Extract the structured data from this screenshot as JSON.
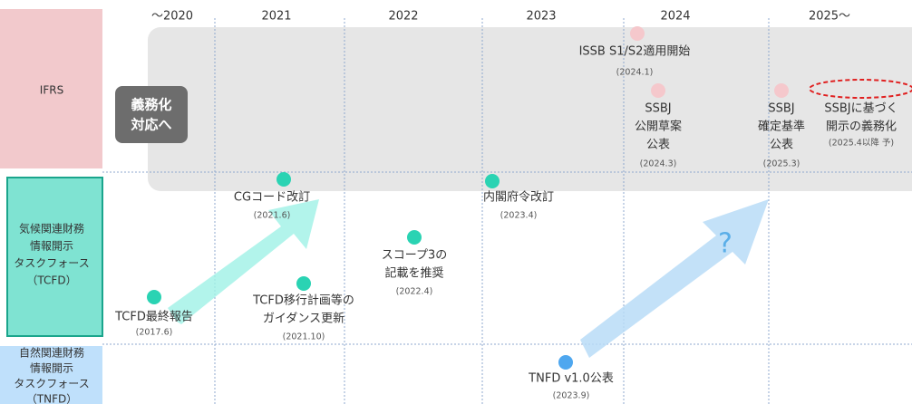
{
  "years": [
    "～2020",
    "2021",
    "2022",
    "2023",
    "2024",
    "2025～"
  ],
  "rows": [
    {
      "lines": [
        "IFRS"
      ]
    },
    {
      "lines": [
        "気候関連財務",
        "情報開示",
        "タスクフォース",
        "（TCFD）"
      ]
    },
    {
      "lines": [
        "自然関連財務",
        "情報開示",
        "タスクフォース",
        "（TNFD）"
      ]
    }
  ],
  "badge": [
    "義務化",
    "対応へ"
  ],
  "question": "?",
  "events": [
    {
      "lines": [
        "ISSB S1/S2適用開始"
      ],
      "date": "(2024.1)"
    },
    {
      "lines": [
        "SSBJ",
        "公開草案",
        "公表"
      ],
      "date": "(2024.3)"
    },
    {
      "lines": [
        "SSBJ",
        "確定基準",
        "公表"
      ],
      "date": "(2025.3)"
    },
    {
      "lines": [
        "SSBJに基づく",
        "開示の義務化"
      ],
      "date": "(2025.4以降 予)"
    },
    {
      "lines": [
        "CGコード改訂"
      ],
      "date": "(2021.6)"
    },
    {
      "lines": [
        "内閣府令改訂"
      ],
      "date": "(2023.4)"
    },
    {
      "lines": [
        "スコープ3の",
        "記載を推奨"
      ],
      "date": "(2022.4)"
    },
    {
      "lines": [
        "TCFD移行計画等の",
        "ガイダンス更新"
      ],
      "date": "(2021.10)"
    },
    {
      "lines": [
        "TCFD最終報告"
      ],
      "date": "(2017.6)"
    },
    {
      "lines": [
        "TNFD v1.0公表"
      ],
      "date": "(2023.9)"
    }
  ]
}
